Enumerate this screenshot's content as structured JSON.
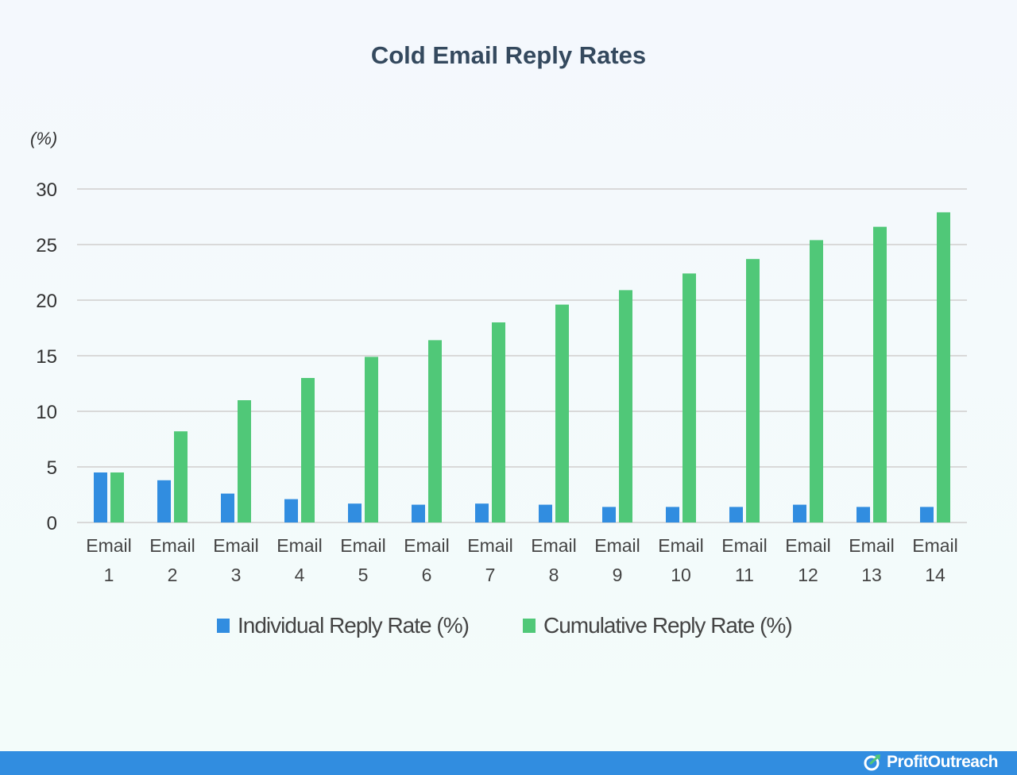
{
  "chart_data": {
    "type": "bar",
    "title": "Cold Email Reply Rates",
    "ylabel": "(%)",
    "xlabel": "",
    "ylim": [
      0,
      30
    ],
    "yticks": [
      0,
      5,
      10,
      15,
      20,
      25,
      30
    ],
    "grid": true,
    "legend_position": "bottom",
    "categories": [
      [
        "Email",
        "1"
      ],
      [
        "Email",
        "2"
      ],
      [
        "Email",
        "3"
      ],
      [
        "Email",
        "4"
      ],
      [
        "Email",
        "5"
      ],
      [
        "Email",
        "6"
      ],
      [
        "Email",
        "7"
      ],
      [
        "Email",
        "8"
      ],
      [
        "Email",
        "9"
      ],
      [
        "Email",
        "10"
      ],
      [
        "Email",
        "11"
      ],
      [
        "Email",
        "12"
      ],
      [
        "Email",
        "13"
      ],
      [
        "Email",
        "14"
      ]
    ],
    "series": [
      {
        "name": "Individual Reply Rate (%)",
        "color": "#318de0",
        "values": [
          4.5,
          3.8,
          2.6,
          2.1,
          1.7,
          1.6,
          1.7,
          1.6,
          1.4,
          1.4,
          1.4,
          1.6,
          1.4,
          1.4
        ]
      },
      {
        "name": "Cumulative Reply Rate (%)",
        "color": "#50c878",
        "values": [
          4.5,
          8.2,
          11.0,
          13.0,
          14.9,
          16.4,
          18.0,
          19.6,
          20.9,
          22.4,
          23.7,
          25.4,
          26.6,
          27.9
        ]
      }
    ]
  },
  "footer": {
    "brand": "ProfitOutreach",
    "color": "#318de0"
  }
}
